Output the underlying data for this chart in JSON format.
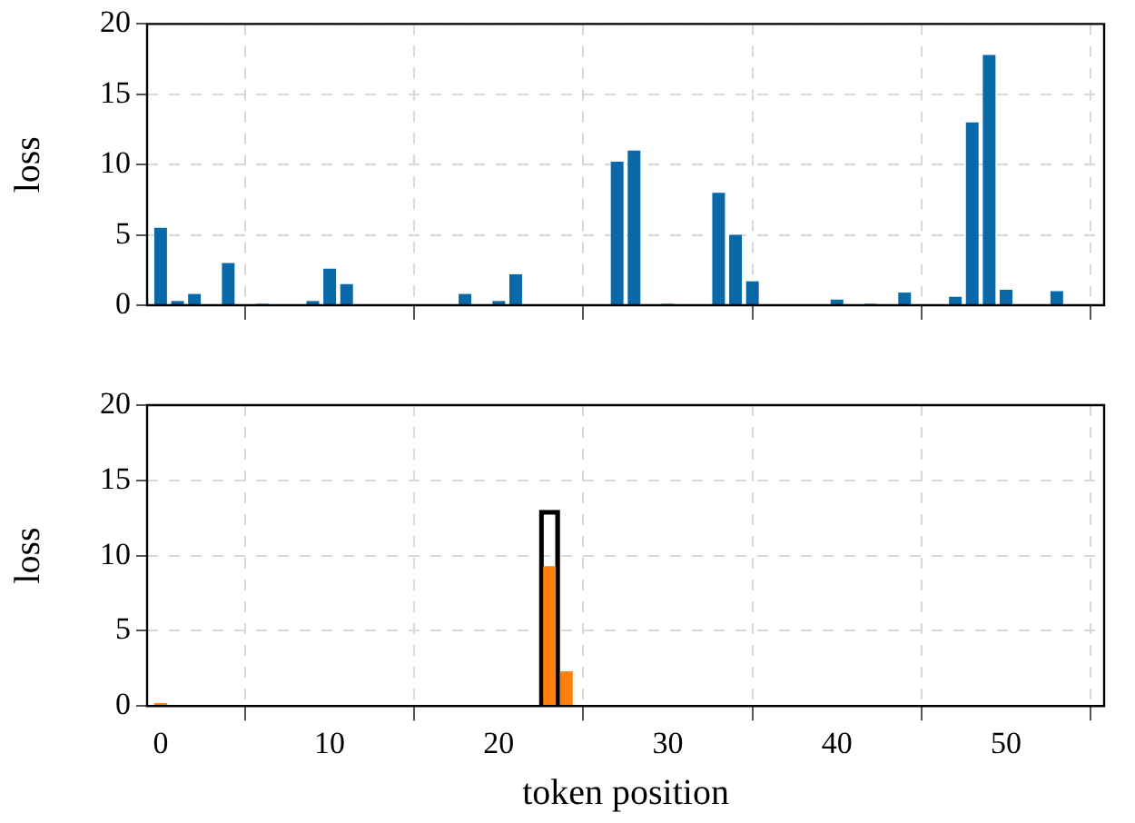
{
  "chart_data": [
    {
      "type": "bar",
      "ylabel": "loss",
      "color": "#0868a8",
      "grid": true,
      "tick_labels": "y",
      "xlim": [
        -0.8,
        55.8
      ],
      "xticks": [
        0,
        10,
        20,
        30,
        40,
        50
      ],
      "ylim": [
        0,
        20
      ],
      "yticks": [
        0,
        5,
        10,
        15,
        20
      ],
      "x": [
        0,
        1,
        2,
        3,
        4,
        5,
        6,
        7,
        8,
        9,
        10,
        11,
        12,
        13,
        14,
        15,
        16,
        17,
        18,
        19,
        20,
        21,
        22,
        23,
        24,
        25,
        26,
        27,
        28,
        29,
        30,
        31,
        32,
        33,
        34,
        35,
        36,
        37,
        38,
        39,
        40,
        41,
        42,
        43,
        44,
        45,
        46,
        47,
        48,
        49,
        50,
        51,
        52,
        53,
        54,
        55
      ],
      "values": [
        5.5,
        0.3,
        0.8,
        0,
        3.0,
        0,
        0.1,
        0,
        0,
        0.3,
        2.6,
        1.5,
        0,
        0,
        0,
        0,
        0,
        0,
        0.8,
        0,
        0.3,
        2.2,
        0,
        0,
        0,
        0,
        0,
        10.2,
        11.0,
        0,
        0.1,
        0,
        0,
        8.0,
        5.0,
        1.7,
        0,
        0,
        0,
        0,
        0.4,
        0,
        0.1,
        0,
        0.9,
        0,
        0,
        0.6,
        13.0,
        17.8,
        1.1,
        0,
        0,
        1.0,
        0,
        0
      ]
    },
    {
      "type": "bar",
      "ylabel": "loss",
      "xlabel": "token position",
      "color": "#ff7f0e",
      "series": [
        {
          "type": "bar",
          "color": "#000000",
          "x": [
            23
          ],
          "values": [
            13
          ]
        }
      ],
      "grid": true,
      "xlim": [
        -0.8,
        55.8
      ],
      "xticks": [
        0,
        10,
        20,
        30,
        40,
        50
      ],
      "ylim": [
        0,
        20
      ],
      "yticks": [
        0,
        5,
        10,
        15,
        20
      ],
      "x": [
        0,
        1,
        2,
        3,
        4,
        5,
        6,
        7,
        8,
        9,
        10,
        11,
        12,
        13,
        14,
        15,
        16,
        17,
        18,
        19,
        20,
        21,
        22,
        23,
        24,
        25,
        26,
        27,
        28,
        29,
        30,
        31,
        32,
        33,
        34,
        35,
        36,
        37,
        38,
        39,
        40,
        41,
        42,
        43,
        44,
        45,
        46,
        47,
        48,
        49,
        50,
        51,
        52,
        53,
        54,
        55
      ],
      "values": [
        0.2,
        0,
        0,
        0,
        0,
        0,
        0,
        0,
        0,
        0,
        0,
        0,
        0,
        0,
        0,
        0,
        0,
        0,
        0,
        0,
        0,
        0,
        0,
        9.3,
        2.3,
        0,
        0,
        0,
        0,
        0,
        0,
        0,
        0,
        0,
        0,
        0,
        0,
        0,
        0,
        0,
        0,
        0,
        0,
        0,
        0,
        0,
        0,
        0,
        0,
        0,
        0,
        0,
        0,
        0,
        0,
        0
      ]
    }
  ]
}
